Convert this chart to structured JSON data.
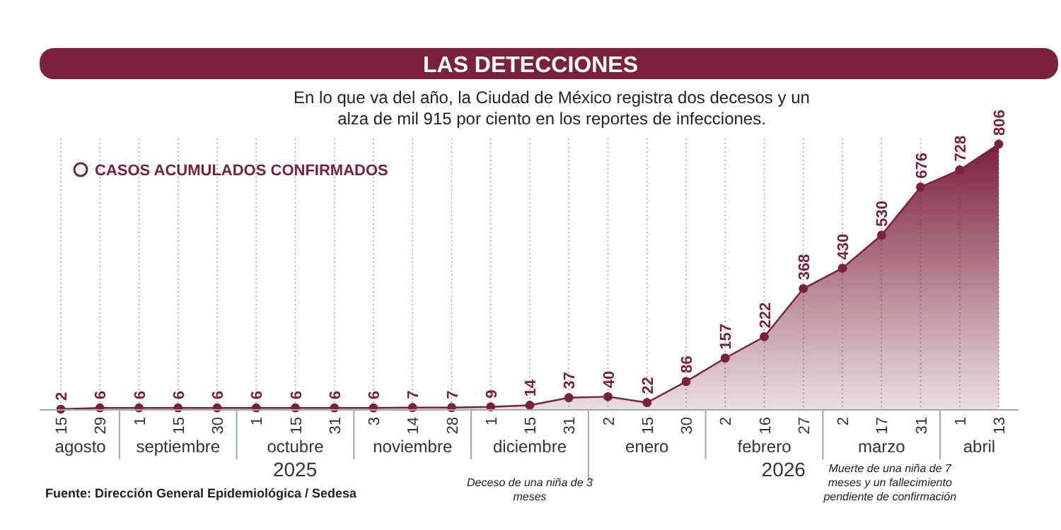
{
  "chart_data": {
    "type": "area",
    "title": "LAS DETECCIONES",
    "subtitle": "En lo que va del año, la Ciudad de México registra dos decesos y un alza de mil 915 por ciento en los reportes de infecciones.",
    "categories": [
      "15",
      "29",
      "1",
      "15",
      "30",
      "1",
      "15",
      "31",
      "3",
      "14",
      "28",
      "1",
      "15",
      "31",
      "2",
      "15",
      "30",
      "2",
      "16",
      "27",
      "2",
      "17",
      "31",
      "1",
      "13"
    ],
    "series": [
      {
        "name": "CASOS ACUMULADOS CONFIRMADOS",
        "color": "#7b2139",
        "values": [
          2,
          6,
          6,
          6,
          6,
          6,
          6,
          6,
          6,
          7,
          7,
          9,
          14,
          37,
          40,
          22,
          86,
          157,
          222,
          368,
          430,
          530,
          676,
          728,
          806
        ]
      }
    ],
    "data_labels": true,
    "marker": "circle",
    "legend": "top left",
    "grid": "x",
    "annotations": [
      "agosto",
      "septiembre",
      "octubre",
      "noviembre",
      "diciembre",
      "enero",
      "febrero",
      "marzo",
      "abril",
      "2025",
      "2026",
      "Deceso de una niña de 3 meses",
      "Muerte de una niña de 7 meses y un fallecimiento pendiente de confirmación",
      "Fuente: Dirección General Epidemiológica / Sedesa"
    ]
  }
}
